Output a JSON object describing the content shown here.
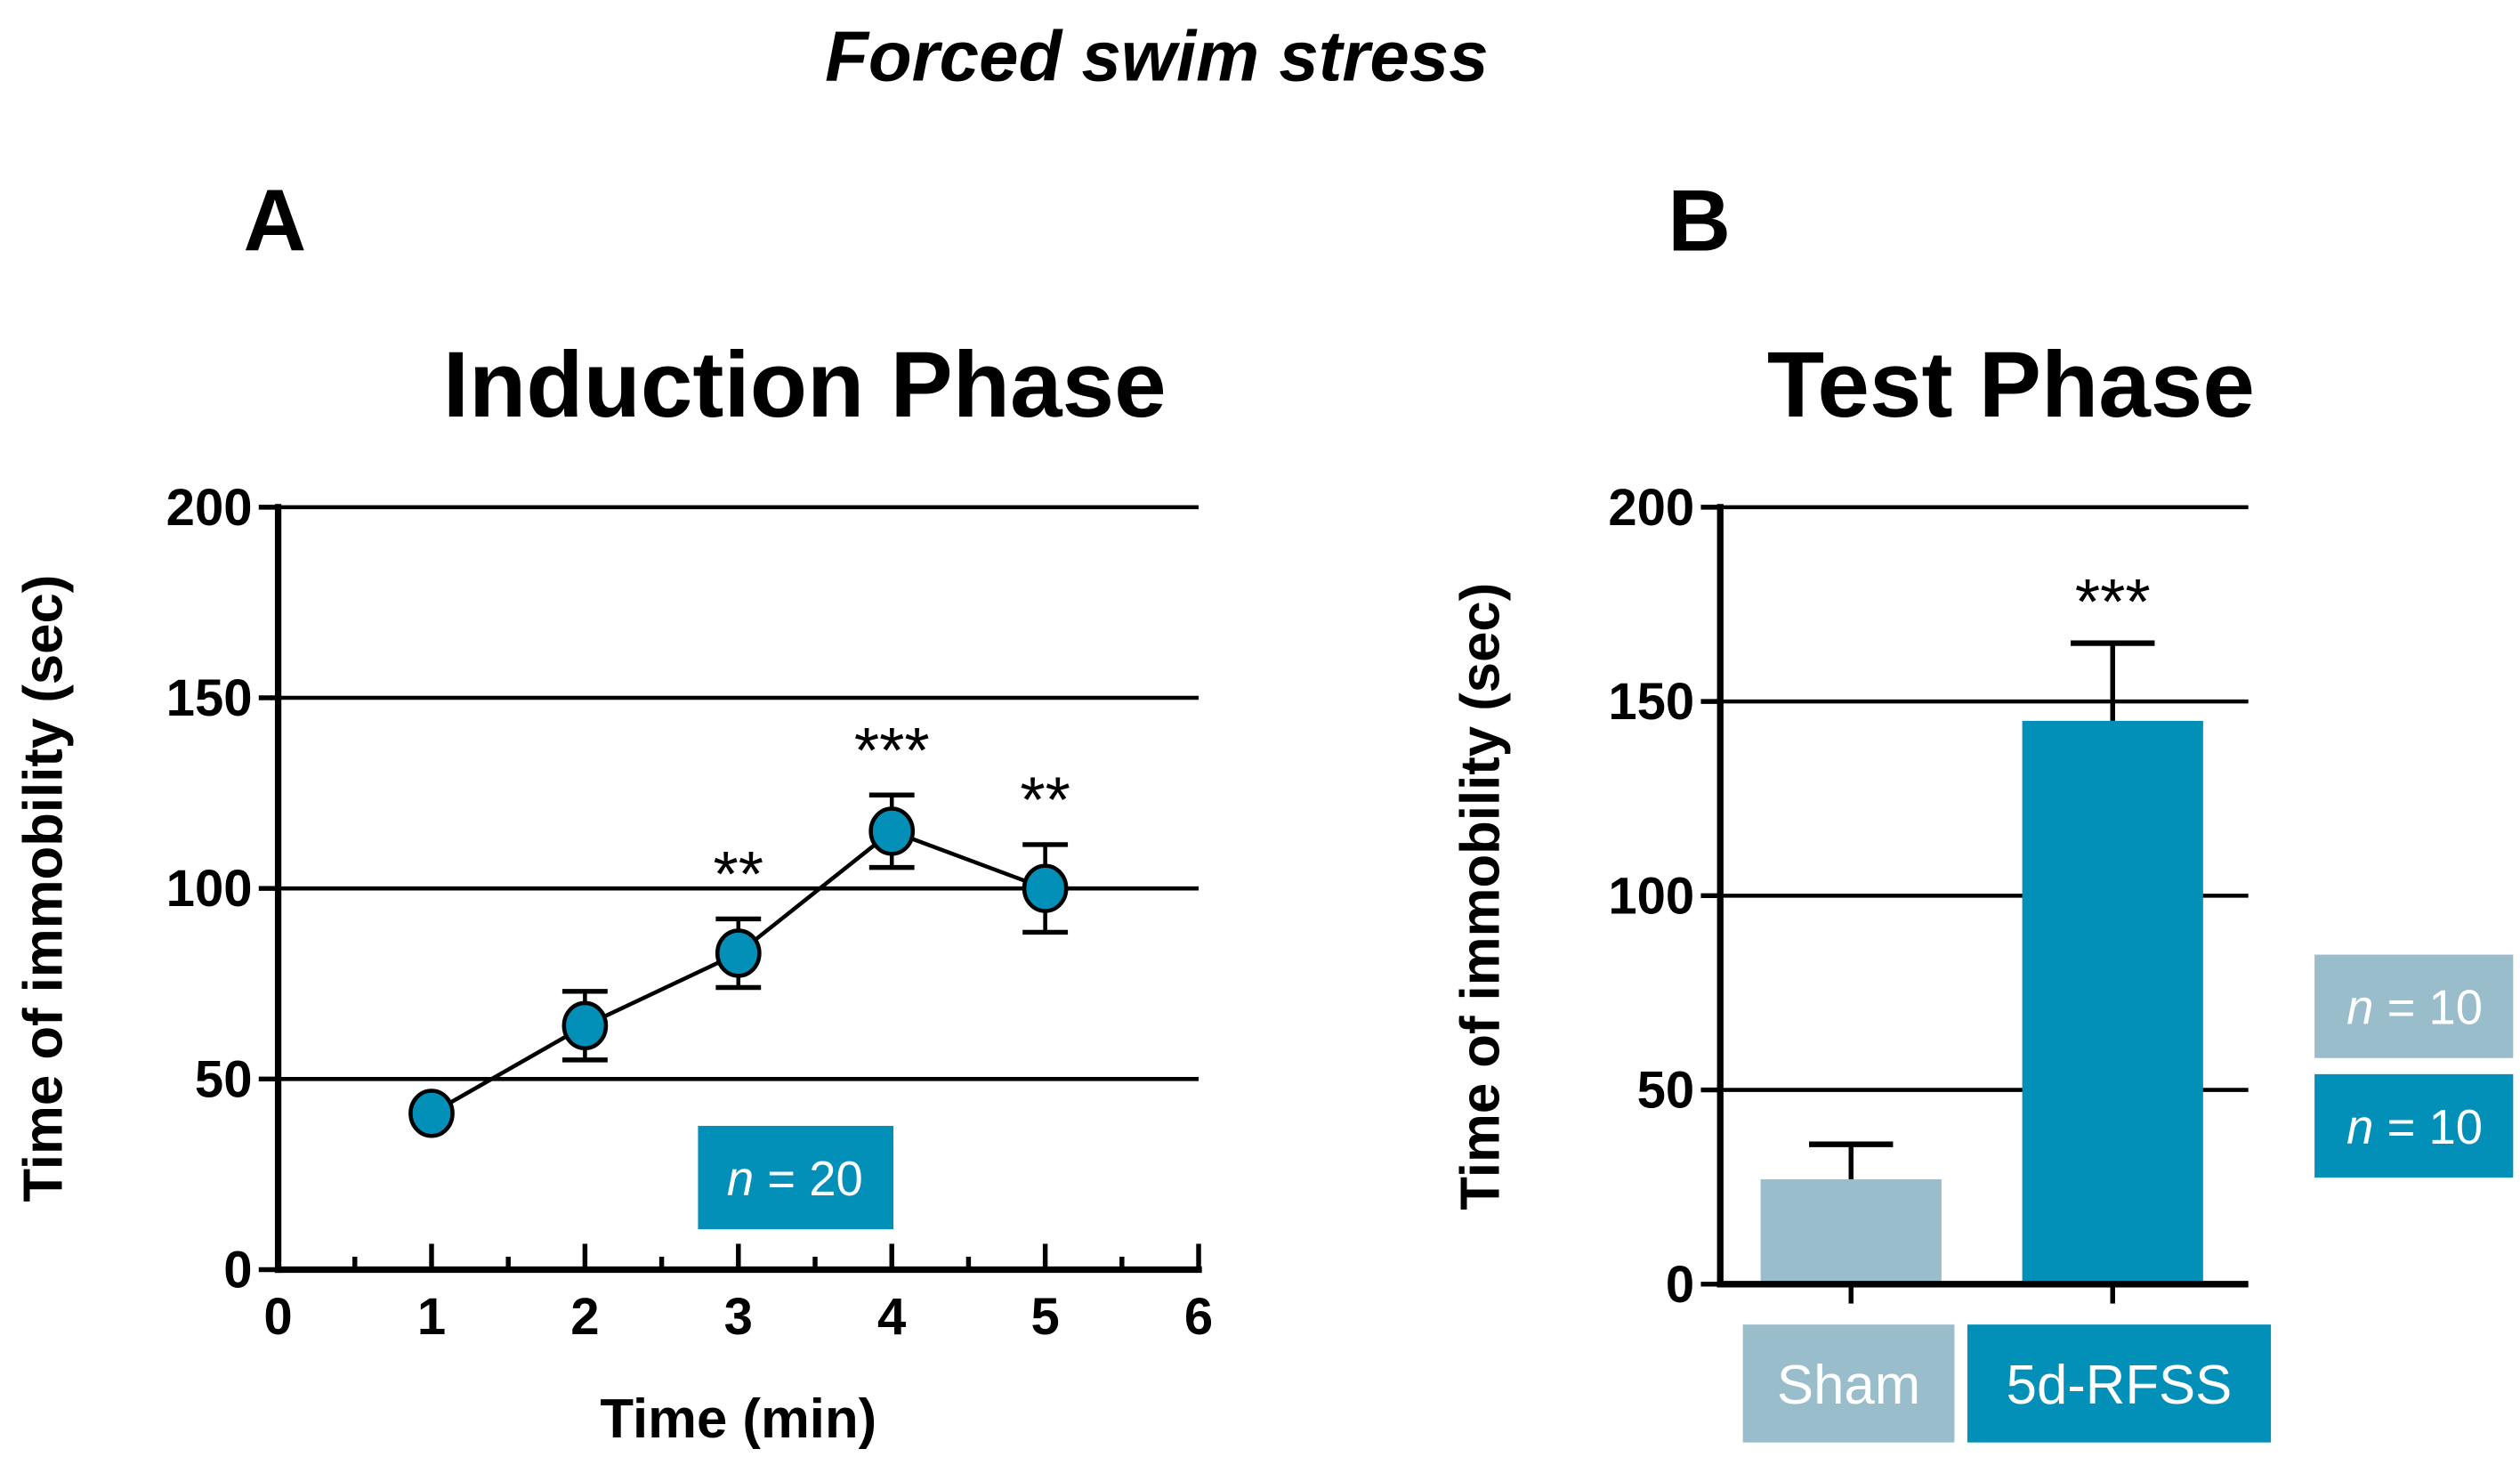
{
  "figure_title": "Forced swim stress",
  "colors": {
    "teal": "#0390b8",
    "sham": "#9abdcb",
    "ink": "#000000"
  },
  "chart_data": [
    {
      "panel": "A",
      "type": "line",
      "title": "Induction Phase",
      "xlabel": "Time (min)",
      "ylabel": "Time of immobility (sec)",
      "xlim": [
        0,
        6
      ],
      "ylim": [
        0,
        200
      ],
      "xticks": [
        "0",
        "1",
        "2",
        "3",
        "4",
        "5",
        "6"
      ],
      "yticks": [
        "0",
        "50",
        "100",
        "150",
        "200"
      ],
      "grid": true,
      "series": [
        {
          "name": "n = 20",
          "x": [
            1,
            2,
            3,
            4,
            5
          ],
          "y": [
            41,
            64,
            83,
            115,
            100
          ],
          "error": [
            0,
            9,
            9,
            9.5,
            11.5
          ],
          "significance": [
            "",
            "",
            "**",
            "***",
            "**"
          ]
        }
      ],
      "legend": {
        "n_label": "n",
        "n_value": "= 20",
        "placement": "bottom-center"
      }
    },
    {
      "panel": "B",
      "type": "bar",
      "title": "Test Phase",
      "ylabel": "Time of immobility (sec)",
      "ylim": [
        0,
        200
      ],
      "yticks": [
        "0",
        "50",
        "100",
        "150",
        "200"
      ],
      "grid": true,
      "categories": [
        "Sham",
        "5d-RFSS"
      ],
      "values": [
        27,
        145
      ],
      "error": [
        9,
        20
      ],
      "significance": [
        "",
        "***"
      ],
      "legend": [
        {
          "n_label": "n",
          "n_value": "= 10",
          "group": "Sham"
        },
        {
          "n_label": "n",
          "n_value": "= 10",
          "group": "5d-RFSS"
        }
      ]
    }
  ]
}
